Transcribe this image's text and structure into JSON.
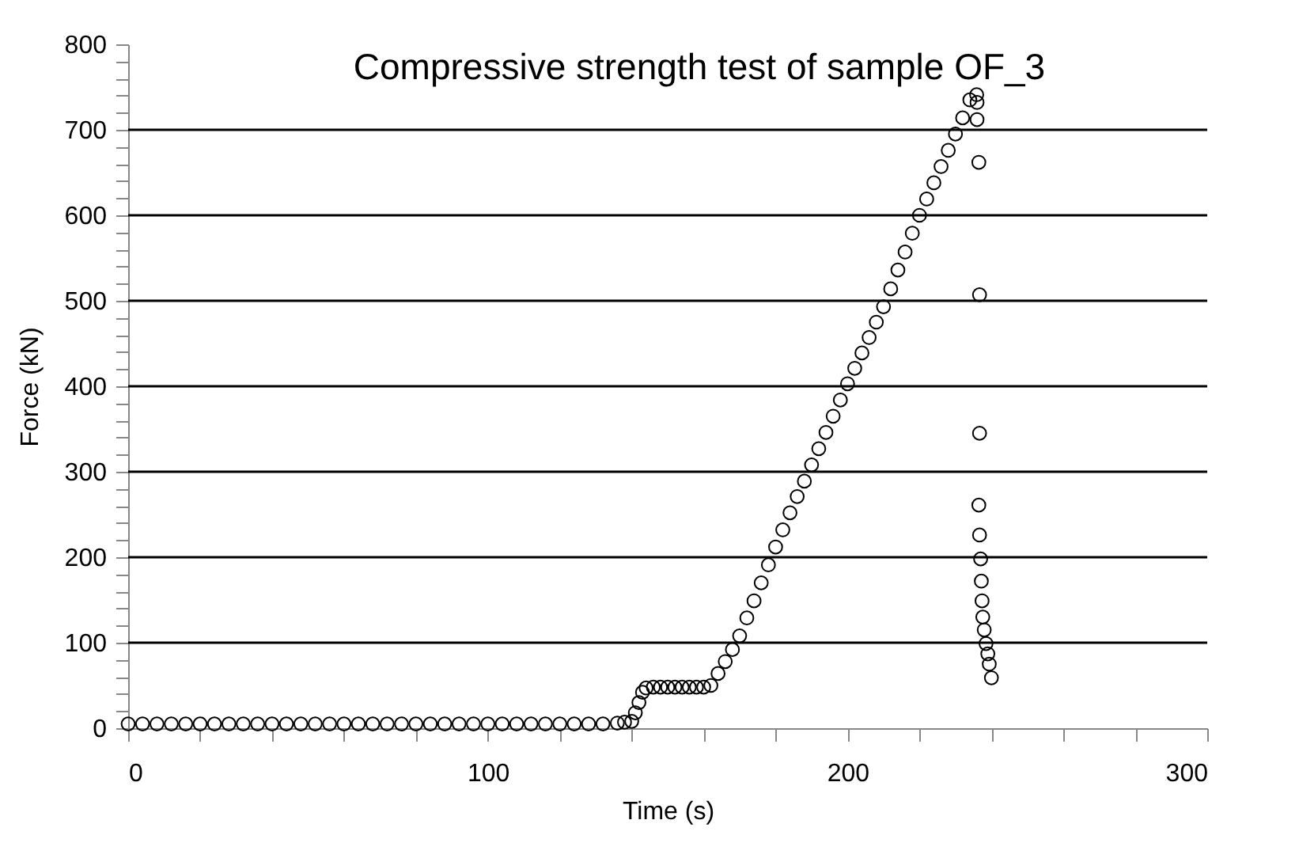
{
  "chart_data": {
    "type": "scatter",
    "title": "Compressive strength test of sample OF_3",
    "xlabel": "Time (s)",
    "ylabel": "Force (kN)",
    "x": [
      0,
      4,
      8,
      12,
      16,
      20,
      24,
      28,
      32,
      36,
      40,
      44,
      48,
      52,
      56,
      60,
      64,
      68,
      72,
      76,
      80,
      84,
      88,
      92,
      96,
      100,
      104,
      108,
      112,
      116,
      120,
      124,
      128,
      132,
      136,
      138,
      140,
      141,
      142,
      143,
      144,
      146,
      148,
      150,
      152,
      154,
      156,
      158,
      160,
      162,
      164,
      166,
      168,
      170,
      172,
      174,
      176,
      178,
      180,
      182,
      184,
      186,
      188,
      190,
      192,
      194,
      196,
      198,
      200,
      202,
      204,
      206,
      208,
      210,
      212,
      214,
      216,
      218,
      220,
      222,
      224,
      226,
      228,
      230,
      232,
      234,
      235.9,
      236,
      236,
      236.5,
      236.7,
      236.7,
      236.5,
      236.7,
      237,
      237.2,
      237.4,
      237.6,
      238,
      238.5,
      239,
      239.4,
      240
    ],
    "series": [
      {
        "color": "#000000",
        "values": [
          5,
          5,
          5,
          5,
          5,
          5,
          5,
          5,
          5,
          5,
          5,
          5,
          5,
          5,
          5,
          5,
          5,
          5,
          5,
          5,
          5,
          5,
          5,
          5,
          5,
          5,
          5,
          5,
          5,
          5,
          5,
          5,
          5,
          5,
          6,
          7,
          8,
          18,
          30,
          42,
          47,
          48,
          48,
          48,
          48,
          48,
          48,
          48,
          48,
          50,
          64,
          78,
          92,
          108,
          129,
          149,
          170,
          191,
          212,
          232,
          252,
          271,
          289,
          308,
          327,
          346,
          365,
          384,
          403,
          421,
          439,
          457,
          475,
          493,
          514,
          536,
          557,
          579,
          600,
          619,
          638,
          657,
          676,
          695,
          714,
          735,
          741,
          732,
          712,
          662,
          507,
          345,
          261,
          226,
          198,
          172,
          149,
          130,
          115,
          99,
          87,
          75,
          59
        ]
      }
    ],
    "marker": "circle",
    "grid": "y",
    "xlim": [
      0,
      300
    ],
    "ylim": [
      0,
      800
    ],
    "xticks": [
      0,
      {
        "value": 20,
        "label": null
      },
      {
        "value": 40,
        "label": null
      },
      {
        "value": 60,
        "label": null
      },
      {
        "value": 80,
        "label": null
      },
      100,
      {
        "value": 120,
        "label": null
      },
      {
        "value": 140,
        "label": null
      },
      {
        "value": 160,
        "label": null
      },
      {
        "value": 180,
        "label": null
      },
      200,
      {
        "value": 220,
        "label": null
      },
      {
        "value": 240,
        "label": null
      },
      {
        "value": 260,
        "label": null
      },
      {
        "value": 280,
        "label": null
      },
      300
    ],
    "yticks": [
      0,
      {
        "value": 20,
        "label": null
      },
      {
        "value": 40,
        "label": null
      },
      {
        "value": 60,
        "label": null
      },
      {
        "value": 80,
        "label": null
      },
      100,
      {
        "value": 120,
        "label": null
      },
      {
        "value": 140,
        "label": null
      },
      {
        "value": 160,
        "label": null
      },
      {
        "value": 180,
        "label": null
      },
      200,
      {
        "value": 220,
        "label": null
      },
      {
        "value": 240,
        "label": null
      },
      {
        "value": 260,
        "label": null
      },
      {
        "value": 280,
        "label": null
      },
      300,
      {
        "value": 320,
        "label": null
      },
      {
        "value": 340,
        "label": null
      },
      {
        "value": 360,
        "label": null
      },
      {
        "value": 380,
        "label": null
      },
      400,
      {
        "value": 420,
        "label": null
      },
      {
        "value": 440,
        "label": null
      },
      {
        "value": 460,
        "label": null
      },
      {
        "value": 480,
        "label": null
      },
      500,
      {
        "value": 520,
        "label": null
      },
      {
        "value": 540,
        "label": null
      },
      {
        "value": 560,
        "label": null
      },
      {
        "value": 580,
        "label": null
      },
      600,
      {
        "value": 620,
        "label": null
      },
      {
        "value": 640,
        "label": null
      },
      {
        "value": 660,
        "label": null
      },
      {
        "value": 680,
        "label": null
      },
      700,
      {
        "value": 720,
        "label": null
      },
      {
        "value": 740,
        "label": null
      },
      {
        "value": 760,
        "label": null
      },
      {
        "value": 780,
        "label": null
      },
      800
    ]
  }
}
